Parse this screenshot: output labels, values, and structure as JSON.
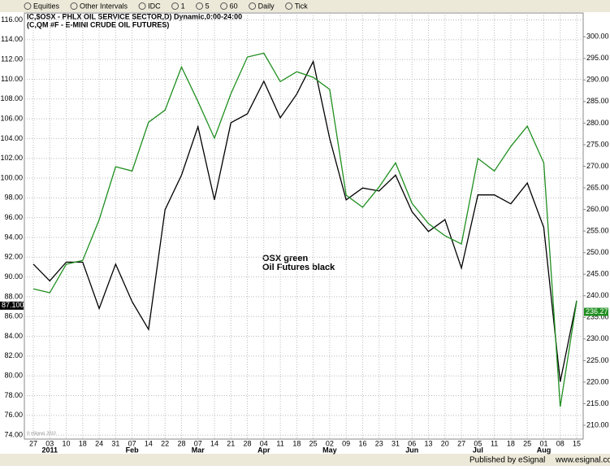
{
  "toolbar": [
    "Equities",
    "Other Intervals",
    "IDC",
    "1",
    "5",
    "60",
    "Daily",
    "Tick"
  ],
  "footer": {
    "text": "Published by eSignal",
    "url": "www.esignal.com"
  },
  "chart_data": {
    "type": "line",
    "title": "IC,$OSX - PHLX OIL SERVICE SECTOR,D) Dynamic,0:00-24:00",
    "subtitle": "(C,QM #F - E-MINI CRUDE OIL FUTURES)",
    "annotations": [
      "OSX green",
      "Oil Futures black"
    ],
    "watermark": "© eSignal, 2010",
    "categories": [
      "27",
      "03",
      "10",
      "18",
      "24",
      "31",
      "07",
      "14",
      "22",
      "28",
      "07",
      "14",
      "21",
      "28",
      "04",
      "11",
      "18",
      "25",
      "02",
      "09",
      "16",
      "23",
      "31",
      "06",
      "13",
      "20",
      "27",
      "05",
      "11",
      "18",
      "25",
      "01",
      "08",
      "15"
    ],
    "months": [
      null,
      "2011",
      null,
      null,
      null,
      null,
      "Feb",
      null,
      null,
      null,
      "Mar",
      null,
      null,
      null,
      "Apr",
      null,
      null,
      null,
      "May",
      null,
      null,
      null,
      null,
      "Jun",
      null,
      null,
      null,
      "Jul",
      null,
      null,
      null,
      "Aug",
      null,
      null
    ],
    "grid": true,
    "ylim": [
      73.6,
      116.7
    ],
    "yticks": [
      {
        "value": 74,
        "label": "74.00"
      },
      {
        "value": 76,
        "label": "76.00"
      },
      {
        "value": 78,
        "label": "78.00"
      },
      {
        "value": 80,
        "label": "80.00"
      },
      {
        "value": 82,
        "label": "82.00"
      },
      {
        "value": 84,
        "label": "84.00"
      },
      {
        "value": 86,
        "label": "86.00"
      },
      {
        "value": 88,
        "label": "88.00"
      },
      {
        "value": 90,
        "label": "90.00"
      },
      {
        "value": 92,
        "label": "92.00"
      },
      {
        "value": 94,
        "label": "94.00"
      },
      {
        "value": 96,
        "label": "96.00"
      },
      {
        "value": 98,
        "label": "98.00"
      },
      {
        "value": 100,
        "label": "100.00"
      },
      {
        "value": 102,
        "label": "102.00"
      },
      {
        "value": 104,
        "label": "104.00"
      },
      {
        "value": 106,
        "label": "106.00"
      },
      {
        "value": 108,
        "label": "108.00"
      },
      {
        "value": 110,
        "label": "110.00"
      },
      {
        "value": 112,
        "label": "112.00"
      },
      {
        "value": 114,
        "label": "114.00"
      },
      {
        "value": 116,
        "label": "116.00"
      }
    ],
    "y2lim": [
      206.8,
      305.5
    ],
    "y2ticks": [
      {
        "value": 210,
        "label": "210.00"
      },
      {
        "value": 215,
        "label": "215.00"
      },
      {
        "value": 220,
        "label": "220.00"
      },
      {
        "value": 225,
        "label": "225.00"
      },
      {
        "value": 230,
        "label": "230.00"
      },
      {
        "value": 235,
        "label": "235.00"
      },
      {
        "value": 240,
        "label": "240.00"
      },
      {
        "value": 245,
        "label": "245.00"
      },
      {
        "value": 250,
        "label": "250.00"
      },
      {
        "value": 255,
        "label": "255.00"
      },
      {
        "value": 260,
        "label": "260.00"
      },
      {
        "value": 265,
        "label": "265.00"
      },
      {
        "value": 270,
        "label": "270.00"
      },
      {
        "value": 275,
        "label": "275.00"
      },
      {
        "value": 280,
        "label": "280.00"
      },
      {
        "value": 285,
        "label": "285.00"
      },
      {
        "value": 290,
        "label": "290.00"
      },
      {
        "value": 295,
        "label": "295.00"
      },
      {
        "value": 300,
        "label": "300.00"
      }
    ],
    "series": [
      {
        "name": "Oil Futures",
        "color": "#000000",
        "axis": "y",
        "values": [
          91.3,
          89.6,
          91.5,
          91.5,
          86.8,
          91.3,
          87.5,
          84.7,
          96.8,
          100.3,
          105.2,
          97.8,
          105.6,
          106.5,
          109.8,
          106.1,
          108.5,
          111.8,
          104,
          97.8,
          99,
          98.7,
          100.3,
          96.6,
          94.6,
          95.8,
          90.9,
          98.3,
          98.3,
          97.4,
          99.5,
          95,
          79.4,
          87.6
        ],
        "current": {
          "value": 87.1,
          "label": "87.100"
        }
      },
      {
        "name": "OSX",
        "color": "#1f8f1f",
        "axis": "y2",
        "values": [
          241.6,
          240.7,
          247.3,
          248.2,
          257.6,
          269.9,
          268.9,
          280.2,
          283,
          293,
          285,
          276.5,
          286.8,
          295.3,
          296.2,
          289.6,
          291.9,
          290.6,
          287.8,
          263.3,
          260.5,
          265.2,
          270.8,
          261.4,
          256.7,
          253.9,
          252,
          271.8,
          268.9,
          274.6,
          279.3,
          270.8,
          214.3,
          238.8
        ],
        "current": {
          "value": 236.27,
          "label": "236.27"
        }
      }
    ]
  }
}
